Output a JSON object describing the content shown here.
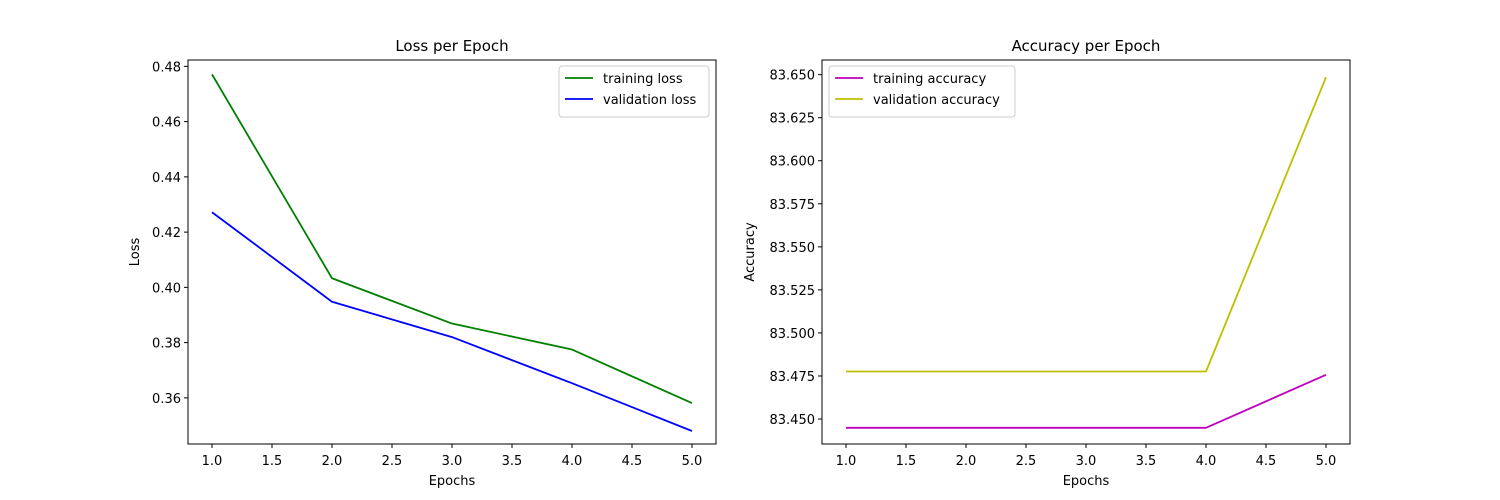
{
  "colors": {
    "training_loss": "#008000",
    "validation_loss": "#0000ff",
    "training_accuracy": "#bf00bf",
    "validation_accuracy": "#bfbf00"
  },
  "chart_data": [
    {
      "type": "line",
      "title": "Loss per Epoch",
      "xlabel": "Epochs",
      "ylabel": "Loss",
      "x": [
        1.0,
        2.0,
        3.0,
        4.0,
        5.0
      ],
      "xlim": [
        0.8,
        5.2
      ],
      "ylim": [
        0.3433,
        0.4823
      ],
      "xticks": [
        1.0,
        1.5,
        2.0,
        2.5,
        3.0,
        3.5,
        4.0,
        4.5,
        5.0
      ],
      "xtick_labels": [
        "1.0",
        "1.5",
        "2.0",
        "2.5",
        "3.0",
        "3.5",
        "4.0",
        "4.5",
        "5.0"
      ],
      "yticks": [
        0.36,
        0.38,
        0.4,
        0.42,
        0.44,
        0.46,
        0.48
      ],
      "ytick_labels": [
        "0.36",
        "0.38",
        "0.40",
        "0.42",
        "0.44",
        "0.46",
        "0.48"
      ],
      "grid": false,
      "legend_position": "upper right",
      "series": [
        {
          "name": "training loss",
          "color": "#008000",
          "values": [
            0.4771,
            0.4033,
            0.3869,
            0.3775,
            0.3581
          ]
        },
        {
          "name": "validation loss",
          "color": "#0000ff",
          "values": [
            0.4272,
            0.3948,
            0.382,
            0.3653,
            0.348
          ]
        }
      ]
    },
    {
      "type": "line",
      "title": "Accuracy per Epoch",
      "xlabel": "Epochs",
      "ylabel": "Accuracy",
      "x": [
        1.0,
        2.0,
        3.0,
        4.0,
        5.0
      ],
      "xlim": [
        0.8,
        5.2
      ],
      "ylim": [
        83.4355,
        83.6585
      ],
      "xticks": [
        1.0,
        1.5,
        2.0,
        2.5,
        3.0,
        3.5,
        4.0,
        4.5,
        5.0
      ],
      "xtick_labels": [
        "1.0",
        "1.5",
        "2.0",
        "2.5",
        "3.0",
        "3.5",
        "4.0",
        "4.5",
        "5.0"
      ],
      "yticks": [
        83.45,
        83.475,
        83.5,
        83.525,
        83.55,
        83.575,
        83.6,
        83.625,
        83.65
      ],
      "ytick_labels": [
        "83.450",
        "83.475",
        "83.500",
        "83.525",
        "83.550",
        "83.575",
        "83.600",
        "83.625",
        "83.650"
      ],
      "grid": false,
      "legend_position": "upper left",
      "series": [
        {
          "name": "training accuracy",
          "color": "#bf00bf",
          "values": [
            83.4449,
            83.4449,
            83.4449,
            83.4449,
            83.4757
          ]
        },
        {
          "name": "validation accuracy",
          "color": "#bfbf00",
          "values": [
            83.4776,
            83.4776,
            83.4776,
            83.4776,
            83.6485
          ]
        }
      ]
    }
  ]
}
